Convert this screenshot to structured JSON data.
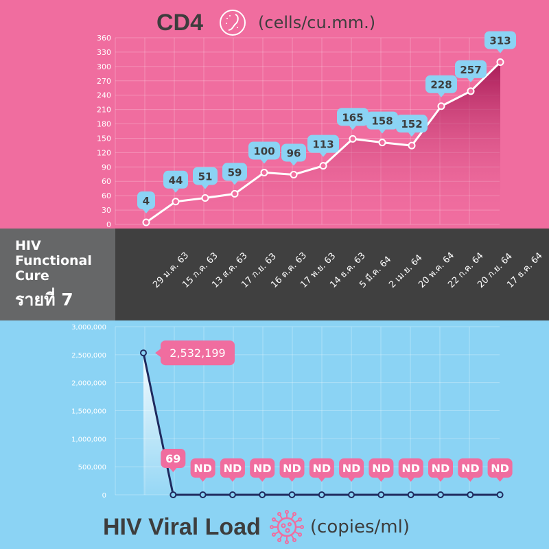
{
  "side": {
    "line1": "HIV",
    "line2": "Functional",
    "line3": "Cure",
    "case": "รายที่ 7"
  },
  "chart_data": [
    {
      "type": "line",
      "title": "CD4",
      "unit": "(cells/cu.mm.)",
      "icon": "cell-icon",
      "y_ticks": [
        "360",
        "330",
        "300",
        "270",
        "240",
        "210",
        "180",
        "150",
        "120",
        "90",
        "60",
        "60",
        "30",
        "0"
      ],
      "ylim": [
        0,
        360
      ],
      "categories": [
        "29 ม.ค. 63",
        "15 ก.ค. 63",
        "13 ส.ค. 63",
        "17 ก.ย. 63",
        "16 ต.ค. 63",
        "17 พ.ย. 63",
        "14 ธ.ค. 63",
        "5 มี.ค. 64",
        "2 เม.ย. 64",
        "20 พ.ค. 64",
        "22 ก.ค. 64",
        "20 ก.ย. 64",
        "17 ธ.ค. 64"
      ],
      "values": [
        4,
        44,
        51,
        59,
        100,
        96,
        113,
        165,
        158,
        152,
        228,
        257,
        313
      ],
      "labels": [
        "4",
        "44",
        "51",
        "59",
        "100",
        "96",
        "113",
        "165",
        "158",
        "152",
        "228",
        "257",
        "313"
      ],
      "colors": {
        "line": "#ffffff",
        "label_bg": "#8bd3f4"
      }
    },
    {
      "type": "line",
      "title": "HIV Viral Load",
      "unit": "(copies/ml)",
      "icon": "virus-icon",
      "y_ticks": [
        "3,000,000",
        "2,500,000",
        "2,000,000",
        "1,500,000",
        "1,000,000",
        "500,000",
        "0"
      ],
      "ylim": [
        0,
        3000000
      ],
      "values": [
        2532199,
        69,
        0,
        0,
        0,
        0,
        0,
        0,
        0,
        0,
        0,
        0,
        0
      ],
      "labels": [
        "2,532,199",
        "69",
        "ND",
        "ND",
        "ND",
        "ND",
        "ND",
        "ND",
        "ND",
        "ND",
        "ND",
        "ND",
        "ND"
      ],
      "colors": {
        "line": "#1f2a5e",
        "label_bg": "#f06d9f"
      }
    }
  ]
}
